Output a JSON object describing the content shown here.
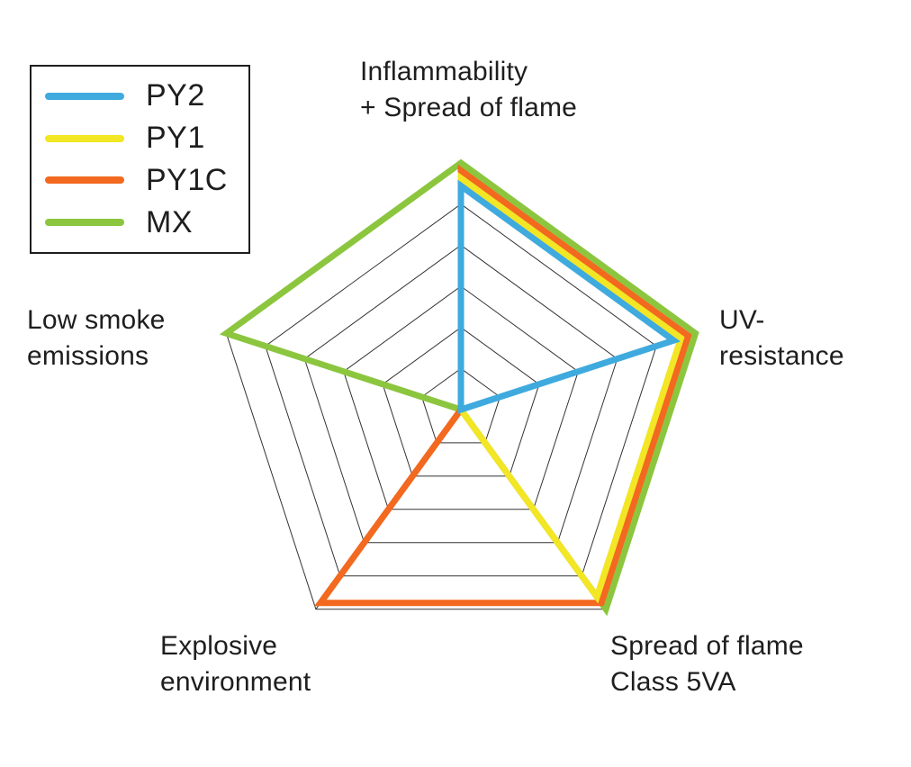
{
  "chart_data": {
    "type": "radar",
    "title": "",
    "value_range": [
      0,
      1
    ],
    "grid_rings": 6,
    "grid_on": true,
    "grid_color": "#333333",
    "text_color": "#1E1E1E",
    "background_color": "#FFFFFF",
    "legend_position": "top-left",
    "axes": [
      {
        "id": "inflammability-spread-of-flame",
        "label": "Inflammability\n+ Spread of flame"
      },
      {
        "id": "uv-resistance",
        "label": "UV-\nresistance"
      },
      {
        "id": "spread-of-flame-class-5va",
        "label": "Spread of flame\nClass 5VA"
      },
      {
        "id": "explosive-environment",
        "label": "Explosive\nenvironment"
      },
      {
        "id": "low-smoke-emissions",
        "label": "Low smoke\nemissions"
      }
    ],
    "series": [
      {
        "name": "MX",
        "color": "#8CC63F",
        "values": [
          1,
          1,
          1,
          0,
          1
        ]
      },
      {
        "name": "PY1C",
        "color": "#F2691F",
        "values": [
          1,
          1,
          1,
          1,
          0
        ]
      },
      {
        "name": "PY1",
        "color": "#F2E625",
        "values": [
          1,
          1,
          1,
          0,
          0
        ]
      },
      {
        "name": "PY2",
        "color": "#3FAADE",
        "values": [
          1,
          1,
          0,
          0,
          0
        ]
      }
    ],
    "legend": [
      {
        "label": "PY2",
        "color": "#3FAADE"
      },
      {
        "label": "PY1",
        "color": "#F2E625"
      },
      {
        "label": "PY1C",
        "color": "#F2691F"
      },
      {
        "label": "MX",
        "color": "#8CC63F"
      }
    ]
  }
}
